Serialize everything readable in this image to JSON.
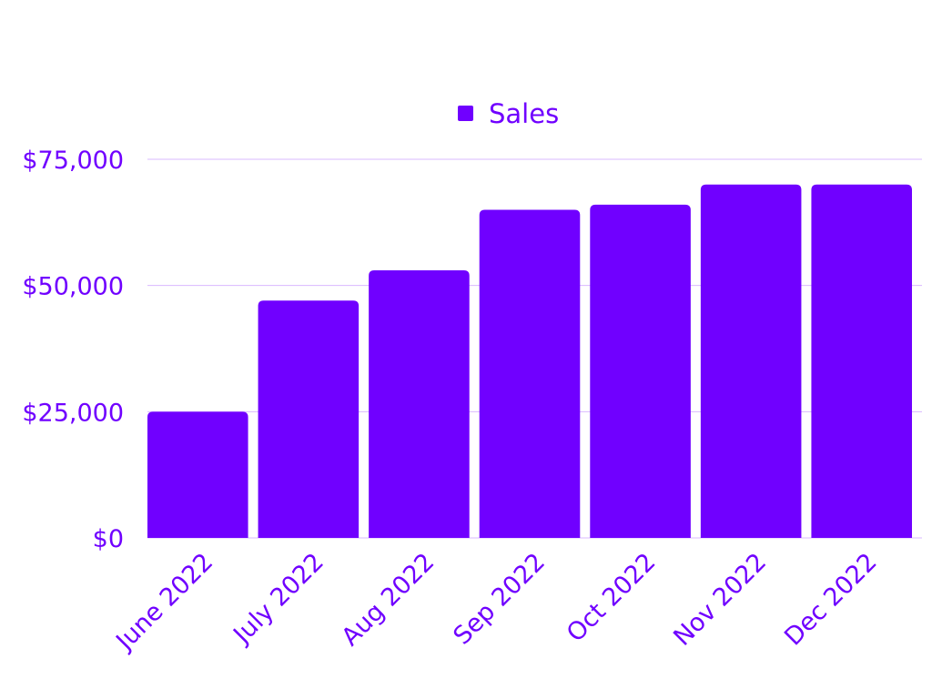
{
  "colors": {
    "bar": "#7000ff",
    "text": "#7000ff",
    "grid": "#d9b8ff"
  },
  "legend": {
    "label": "Sales"
  },
  "chart_data": {
    "type": "bar",
    "categories": [
      "June 2022",
      "July 2022",
      "Aug 2022",
      "Sep 2022",
      "Oct 2022",
      "Nov 2022",
      "Dec 2022"
    ],
    "series": [
      {
        "name": "Sales",
        "values": [
          25000,
          47000,
          53000,
          65000,
          66000,
          70000,
          70000
        ]
      }
    ],
    "yticks": [
      0,
      25000,
      50000,
      75000
    ],
    "ytick_labels": [
      "$0",
      "$25,000",
      "$50,000",
      "$75,000"
    ],
    "ylim": [
      0,
      75000
    ],
    "grid": true,
    "legend_position": "top-center"
  }
}
